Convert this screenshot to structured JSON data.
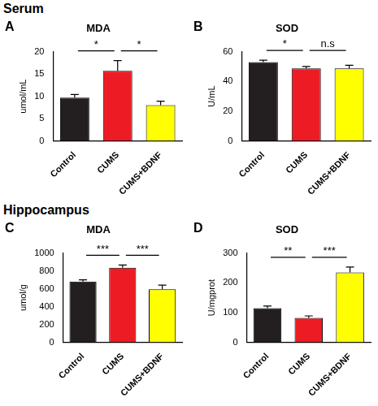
{
  "sections": [
    "Serum",
    "Hippocampus"
  ],
  "chart_data": [
    {
      "panel": "A",
      "type": "bar",
      "title": "MDA",
      "y_label": "umol/mL",
      "categories": [
        "Control",
        "CUMS",
        "CUMS+BDNF"
      ],
      "values": [
        9.7,
        15.7,
        8.0
      ],
      "errors": [
        0.7,
        2.3,
        0.9
      ],
      "colors": [
        "#231f20",
        "#ed1c24",
        "#ffff00"
      ],
      "ylim": [
        0,
        20
      ],
      "yticks": [
        0,
        5,
        10,
        15,
        20
      ],
      "grid": false,
      "annotations": [
        {
          "from": "Control",
          "to": "CUMS",
          "label": "*"
        },
        {
          "from": "CUMS",
          "to": "CUMS+BDNF",
          "label": "*"
        }
      ]
    },
    {
      "panel": "B",
      "type": "bar",
      "title": "SOD",
      "y_label": "U/mL",
      "categories": [
        "Control",
        "CUMS",
        "CUMS+BDNF"
      ],
      "values": [
        53.0,
        48.8,
        48.7
      ],
      "errors": [
        1.3,
        1.2,
        2.2
      ],
      "colors": [
        "#231f20",
        "#ed1c24",
        "#ffff00"
      ],
      "ylim": [
        0,
        60
      ],
      "yticks": [
        0,
        20,
        40,
        60
      ],
      "grid": false,
      "annotations": [
        {
          "from": "Control",
          "to": "CUMS",
          "label": "*"
        },
        {
          "from": "CUMS",
          "to": "CUMS+BDNF",
          "label": "n.s"
        }
      ]
    },
    {
      "panel": "C",
      "type": "bar",
      "title": "MDA",
      "y_label": "umol/g",
      "categories": [
        "Control",
        "CUMS",
        "CUMS+BDNF"
      ],
      "values": [
        680,
        835,
        595
      ],
      "errors": [
        20,
        30,
        45
      ],
      "colors": [
        "#231f20",
        "#ed1c24",
        "#ffff00"
      ],
      "ylim": [
        0,
        1000
      ],
      "yticks": [
        0,
        200,
        400,
        600,
        800,
        1000
      ],
      "grid": false,
      "annotations": [
        {
          "from": "Control",
          "to": "CUMS",
          "label": "***"
        },
        {
          "from": "CUMS",
          "to": "CUMS+BDNF",
          "label": "***"
        }
      ]
    },
    {
      "panel": "D",
      "type": "bar",
      "title": "SOD",
      "y_label": "U/mgprot",
      "categories": [
        "Control",
        "CUMS",
        "CUMS+BDNF"
      ],
      "values": [
        115,
        82,
        235
      ],
      "errors": [
        7,
        7,
        18
      ],
      "colors": [
        "#231f20",
        "#ed1c24",
        "#ffff00"
      ],
      "ylim": [
        0,
        300
      ],
      "yticks": [
        0,
        100,
        200,
        300
      ],
      "grid": false,
      "annotations": [
        {
          "from": "Control",
          "to": "CUMS",
          "label": "**"
        },
        {
          "from": "CUMS",
          "to": "CUMS+BDNF",
          "label": "***"
        }
      ]
    }
  ]
}
